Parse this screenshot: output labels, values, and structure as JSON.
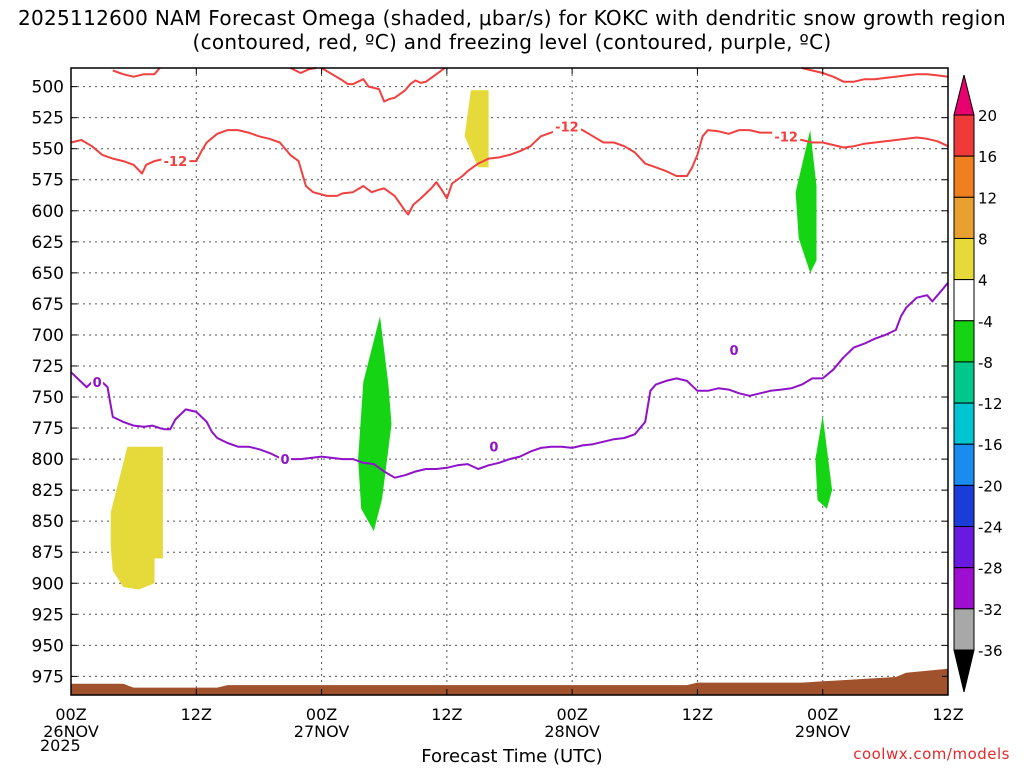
{
  "chart_data": {
    "type": "heatmap",
    "title": "2025112600 NAM Forecast Omega (shaded, μbar/s) for KOKC with dendritic snow growth region (contoured, red, ºC) and freezing level (contoured, purple, ºC)",
    "xlabel": "Forecast Time (UTC)",
    "ylabel": "",
    "x_unit": "hours from 2025-11-26 00Z",
    "xlim": [
      0,
      84
    ],
    "ylim": [
      990,
      485
    ],
    "y_ticks": [
      500,
      525,
      550,
      575,
      600,
      625,
      650,
      675,
      700,
      725,
      750,
      775,
      800,
      825,
      850,
      875,
      900,
      925,
      950,
      975
    ],
    "x_ticks": [
      {
        "x": 0,
        "label": "00Z",
        "date": "26NOV"
      },
      {
        "x": 12,
        "label": "12Z",
        "date": ""
      },
      {
        "x": 24,
        "label": "00Z",
        "date": "27NOV"
      },
      {
        "x": 36,
        "label": "12Z",
        "date": ""
      },
      {
        "x": 48,
        "label": "00Z",
        "date": "28NOV"
      },
      {
        "x": 60,
        "label": "12Z",
        "date": ""
      },
      {
        "x": 72,
        "label": "00Z",
        "date": "29NOV"
      },
      {
        "x": 84,
        "label": "12Z",
        "date": ""
      }
    ],
    "year_label": "2025",
    "grid": true,
    "colorbar": {
      "unit": "μbar/s",
      "bins": [
        {
          "label": "20",
          "color": "#e8006f"
        },
        {
          "label": "16",
          "color": "#f03a3a"
        },
        {
          "label": "12",
          "color": "#f07f20"
        },
        {
          "label": "8",
          "color": "#e8a030"
        },
        {
          "label": "4",
          "color": "#e5da3a"
        },
        {
          "label": "-4",
          "color": "#ffffff"
        },
        {
          "label": "-8",
          "color": "#14d414"
        },
        {
          "label": "-12",
          "color": "#00c88c"
        },
        {
          "label": "-16",
          "color": "#00c4d0"
        },
        {
          "label": "-20",
          "color": "#1a8cf0"
        },
        {
          "label": "-24",
          "color": "#1a3cd8"
        },
        {
          "label": "-28",
          "color": "#6a1ae0"
        },
        {
          "label": "-32",
          "color": "#9e0ed0"
        },
        {
          "label": "-36",
          "color": "#a8a8a8"
        }
      ]
    },
    "omega_regions": [
      {
        "name": "yellow",
        "color": "#e5da3a",
        "points": [
          [
            3.8,
            843
          ],
          [
            5.4,
            790
          ],
          [
            8.8,
            790
          ],
          [
            8.8,
            880
          ],
          [
            8.0,
            880
          ],
          [
            8.0,
            900
          ],
          [
            6.5,
            905
          ],
          [
            5.0,
            903
          ],
          [
            4.0,
            890
          ],
          [
            3.8,
            870
          ]
        ]
      },
      {
        "name": "yellow",
        "color": "#e5da3a",
        "points": [
          [
            38.3,
            503
          ],
          [
            40.0,
            503
          ],
          [
            40.0,
            565
          ],
          [
            39.0,
            565
          ],
          [
            37.7,
            540
          ],
          [
            38.3,
            503
          ]
        ]
      },
      {
        "name": "green",
        "color": "#14d414",
        "points": [
          [
            29.6,
            685
          ],
          [
            30.4,
            740
          ],
          [
            30.7,
            772
          ],
          [
            29.8,
            832
          ],
          [
            29.0,
            858
          ],
          [
            27.8,
            840
          ],
          [
            27.5,
            800
          ],
          [
            28.0,
            738
          ]
        ]
      },
      {
        "name": "green",
        "color": "#14d414",
        "points": [
          [
            70.8,
            535
          ],
          [
            71.4,
            580
          ],
          [
            71.4,
            640
          ],
          [
            70.8,
            650
          ],
          [
            69.7,
            622
          ],
          [
            69.4,
            585
          ]
        ]
      },
      {
        "name": "green",
        "color": "#14d414",
        "points": [
          [
            72.0,
            765
          ],
          [
            72.9,
            825
          ],
          [
            72.4,
            840
          ],
          [
            71.5,
            833
          ],
          [
            71.3,
            800
          ]
        ]
      }
    ],
    "dgz_contour": {
      "color": "#f04040",
      "label": "-12",
      "upper": [
        [
          0,
          545
        ],
        [
          1,
          543
        ],
        [
          2,
          548
        ],
        [
          3,
          555
        ],
        [
          4,
          558
        ],
        [
          5,
          560
        ],
        [
          6,
          563
        ],
        [
          6.8,
          570
        ],
        [
          7.2,
          563
        ],
        [
          8,
          560
        ],
        [
          9,
          558
        ],
        [
          10,
          562
        ],
        [
          11,
          560
        ],
        [
          12,
          560
        ],
        [
          12.5,
          552
        ],
        [
          13,
          545
        ],
        [
          14,
          538
        ],
        [
          15,
          535
        ],
        [
          16,
          535
        ],
        [
          17,
          537
        ],
        [
          18,
          540
        ],
        [
          19,
          542
        ],
        [
          20,
          545
        ],
        [
          21,
          555
        ],
        [
          21.8,
          560
        ],
        [
          22.5,
          580
        ],
        [
          23.2,
          585
        ],
        [
          24.5,
          588
        ],
        [
          25.5,
          588
        ],
        [
          26,
          586
        ],
        [
          27,
          585
        ],
        [
          28,
          580
        ],
        [
          28.8,
          585
        ],
        [
          29.5,
          583
        ],
        [
          30,
          582
        ],
        [
          31,
          588
        ],
        [
          32,
          600
        ],
        [
          32.3,
          603
        ],
        [
          32.8,
          595
        ],
        [
          33.5,
          590
        ],
        [
          34.5,
          582
        ],
        [
          35,
          577
        ],
        [
          35.5,
          583
        ],
        [
          36,
          590
        ],
        [
          36.5,
          578
        ],
        [
          37.5,
          572
        ],
        [
          38,
          568
        ],
        [
          39,
          562
        ],
        [
          40,
          558
        ],
        [
          41,
          557
        ],
        [
          42,
          555
        ],
        [
          43,
          552
        ],
        [
          44,
          548
        ],
        [
          45,
          540
        ],
        [
          46,
          537
        ],
        [
          46.5,
          535
        ],
        [
          47,
          532
        ],
        [
          48,
          532
        ],
        [
          49,
          535
        ],
        [
          50,
          540
        ],
        [
          51,
          545
        ],
        [
          52,
          545
        ],
        [
          53,
          548
        ],
        [
          54,
          553
        ],
        [
          55,
          562
        ],
        [
          56,
          565
        ],
        [
          57,
          568
        ],
        [
          58,
          572
        ],
        [
          59,
          572
        ],
        [
          59.5,
          565
        ],
        [
          60,
          555
        ],
        [
          60.5,
          540
        ],
        [
          61,
          535
        ],
        [
          62,
          536
        ],
        [
          63,
          538
        ],
        [
          64,
          535
        ],
        [
          65,
          535
        ],
        [
          66,
          537
        ],
        [
          67,
          537
        ],
        [
          68,
          538
        ],
        [
          69,
          542
        ],
        [
          70,
          543
        ],
        [
          71,
          545
        ],
        [
          72,
          545
        ],
        [
          73,
          547
        ],
        [
          74,
          549
        ],
        [
          75,
          548
        ],
        [
          76,
          546
        ],
        [
          77,
          545
        ],
        [
          78,
          544
        ],
        [
          79,
          543
        ],
        [
          80,
          542
        ],
        [
          81,
          541
        ],
        [
          82,
          542
        ],
        [
          83,
          544
        ],
        [
          84,
          548
        ]
      ],
      "top": [
        [
          4,
          487
        ],
        [
          5,
          490
        ],
        [
          6,
          492
        ],
        [
          7,
          490
        ],
        [
          8,
          490
        ],
        [
          8.5,
          485
        ]
      ],
      "top2": [
        [
          21,
          485
        ],
        [
          22,
          489
        ],
        [
          22.8,
          486
        ],
        [
          23.5,
          485
        ]
      ],
      "top3": [
        [
          24,
          485
        ],
        [
          25,
          490
        ],
        [
          26,
          495
        ],
        [
          26.5,
          498
        ],
        [
          27,
          498
        ],
        [
          27.5,
          496
        ],
        [
          28,
          494
        ],
        [
          28.5,
          500
        ],
        [
          29.5,
          502
        ],
        [
          30,
          512
        ],
        [
          30.5,
          510
        ],
        [
          31,
          509
        ],
        [
          31.5,
          506
        ],
        [
          32,
          503
        ],
        [
          32.5,
          498
        ],
        [
          33,
          495
        ],
        [
          33.5,
          497
        ],
        [
          34,
          496
        ],
        [
          34.5,
          493
        ],
        [
          35,
          490
        ],
        [
          35.8,
          485
        ]
      ],
      "top4": [
        [
          70,
          485
        ],
        [
          71,
          487
        ],
        [
          72,
          489
        ],
        [
          73,
          492
        ],
        [
          74,
          496
        ],
        [
          75,
          496
        ],
        [
          76,
          494
        ],
        [
          77,
          494
        ],
        [
          78,
          493
        ],
        [
          79,
          492
        ],
        [
          80,
          491
        ],
        [
          81,
          490
        ],
        [
          82,
          490
        ],
        [
          83,
          491
        ],
        [
          84,
          492
        ]
      ]
    },
    "freezing_level": {
      "color": "#9012c8",
      "label": "0",
      "points": [
        [
          0,
          730
        ],
        [
          1,
          738
        ],
        [
          1.5,
          742
        ],
        [
          2,
          738
        ],
        [
          3,
          738
        ],
        [
          3.5,
          742
        ],
        [
          4,
          766
        ],
        [
          5,
          770
        ],
        [
          6,
          773
        ],
        [
          7,
          774
        ],
        [
          7.8,
          773
        ],
        [
          8.5,
          775
        ],
        [
          9,
          776
        ],
        [
          9.5,
          776
        ],
        [
          10,
          768
        ],
        [
          11,
          760
        ],
        [
          12,
          762
        ],
        [
          13,
          770
        ],
        [
          13.5,
          778
        ],
        [
          14,
          783
        ],
        [
          15,
          787
        ],
        [
          16,
          790
        ],
        [
          17,
          790
        ],
        [
          18,
          792
        ],
        [
          19,
          795
        ],
        [
          20,
          799
        ],
        [
          21,
          800
        ],
        [
          22,
          800
        ],
        [
          23,
          799
        ],
        [
          24,
          798
        ],
        [
          25,
          799
        ],
        [
          26,
          800
        ],
        [
          27,
          800
        ],
        [
          28,
          803
        ],
        [
          29,
          804
        ],
        [
          30,
          810
        ],
        [
          31,
          815
        ],
        [
          32,
          813
        ],
        [
          33,
          810
        ],
        [
          34,
          808
        ],
        [
          35,
          808
        ],
        [
          36,
          807
        ],
        [
          37,
          805
        ],
        [
          38,
          804
        ],
        [
          39,
          808
        ],
        [
          40,
          805
        ],
        [
          41,
          803
        ],
        [
          42,
          800
        ],
        [
          43,
          798
        ],
        [
          44,
          794
        ],
        [
          45,
          791
        ],
        [
          46,
          790
        ],
        [
          47,
          790
        ],
        [
          48,
          791
        ],
        [
          49,
          789
        ],
        [
          50,
          788
        ],
        [
          51,
          786
        ],
        [
          52,
          784
        ],
        [
          53,
          783
        ],
        [
          54,
          780
        ],
        [
          55,
          770
        ],
        [
          55.5,
          745
        ],
        [
          56,
          740
        ],
        [
          57,
          737
        ],
        [
          58,
          735
        ],
        [
          59,
          737
        ],
        [
          60,
          745
        ],
        [
          61,
          745
        ],
        [
          62,
          743
        ],
        [
          63,
          744
        ],
        [
          64,
          747
        ],
        [
          65,
          749
        ],
        [
          66,
          747
        ],
        [
          67,
          745
        ],
        [
          68,
          744
        ],
        [
          69,
          743
        ],
        [
          70,
          740
        ],
        [
          71,
          735
        ],
        [
          72,
          735
        ],
        [
          73,
          728
        ],
        [
          74,
          718
        ],
        [
          75,
          710
        ],
        [
          76,
          707
        ],
        [
          77,
          703
        ],
        [
          78,
          700
        ],
        [
          79,
          696
        ],
        [
          79.5,
          685
        ],
        [
          80,
          678
        ],
        [
          81,
          670
        ],
        [
          82,
          668
        ],
        [
          82.5,
          673
        ],
        [
          83,
          668
        ],
        [
          84,
          658
        ]
      ]
    }
  },
  "credit": "coolwx.com/models"
}
